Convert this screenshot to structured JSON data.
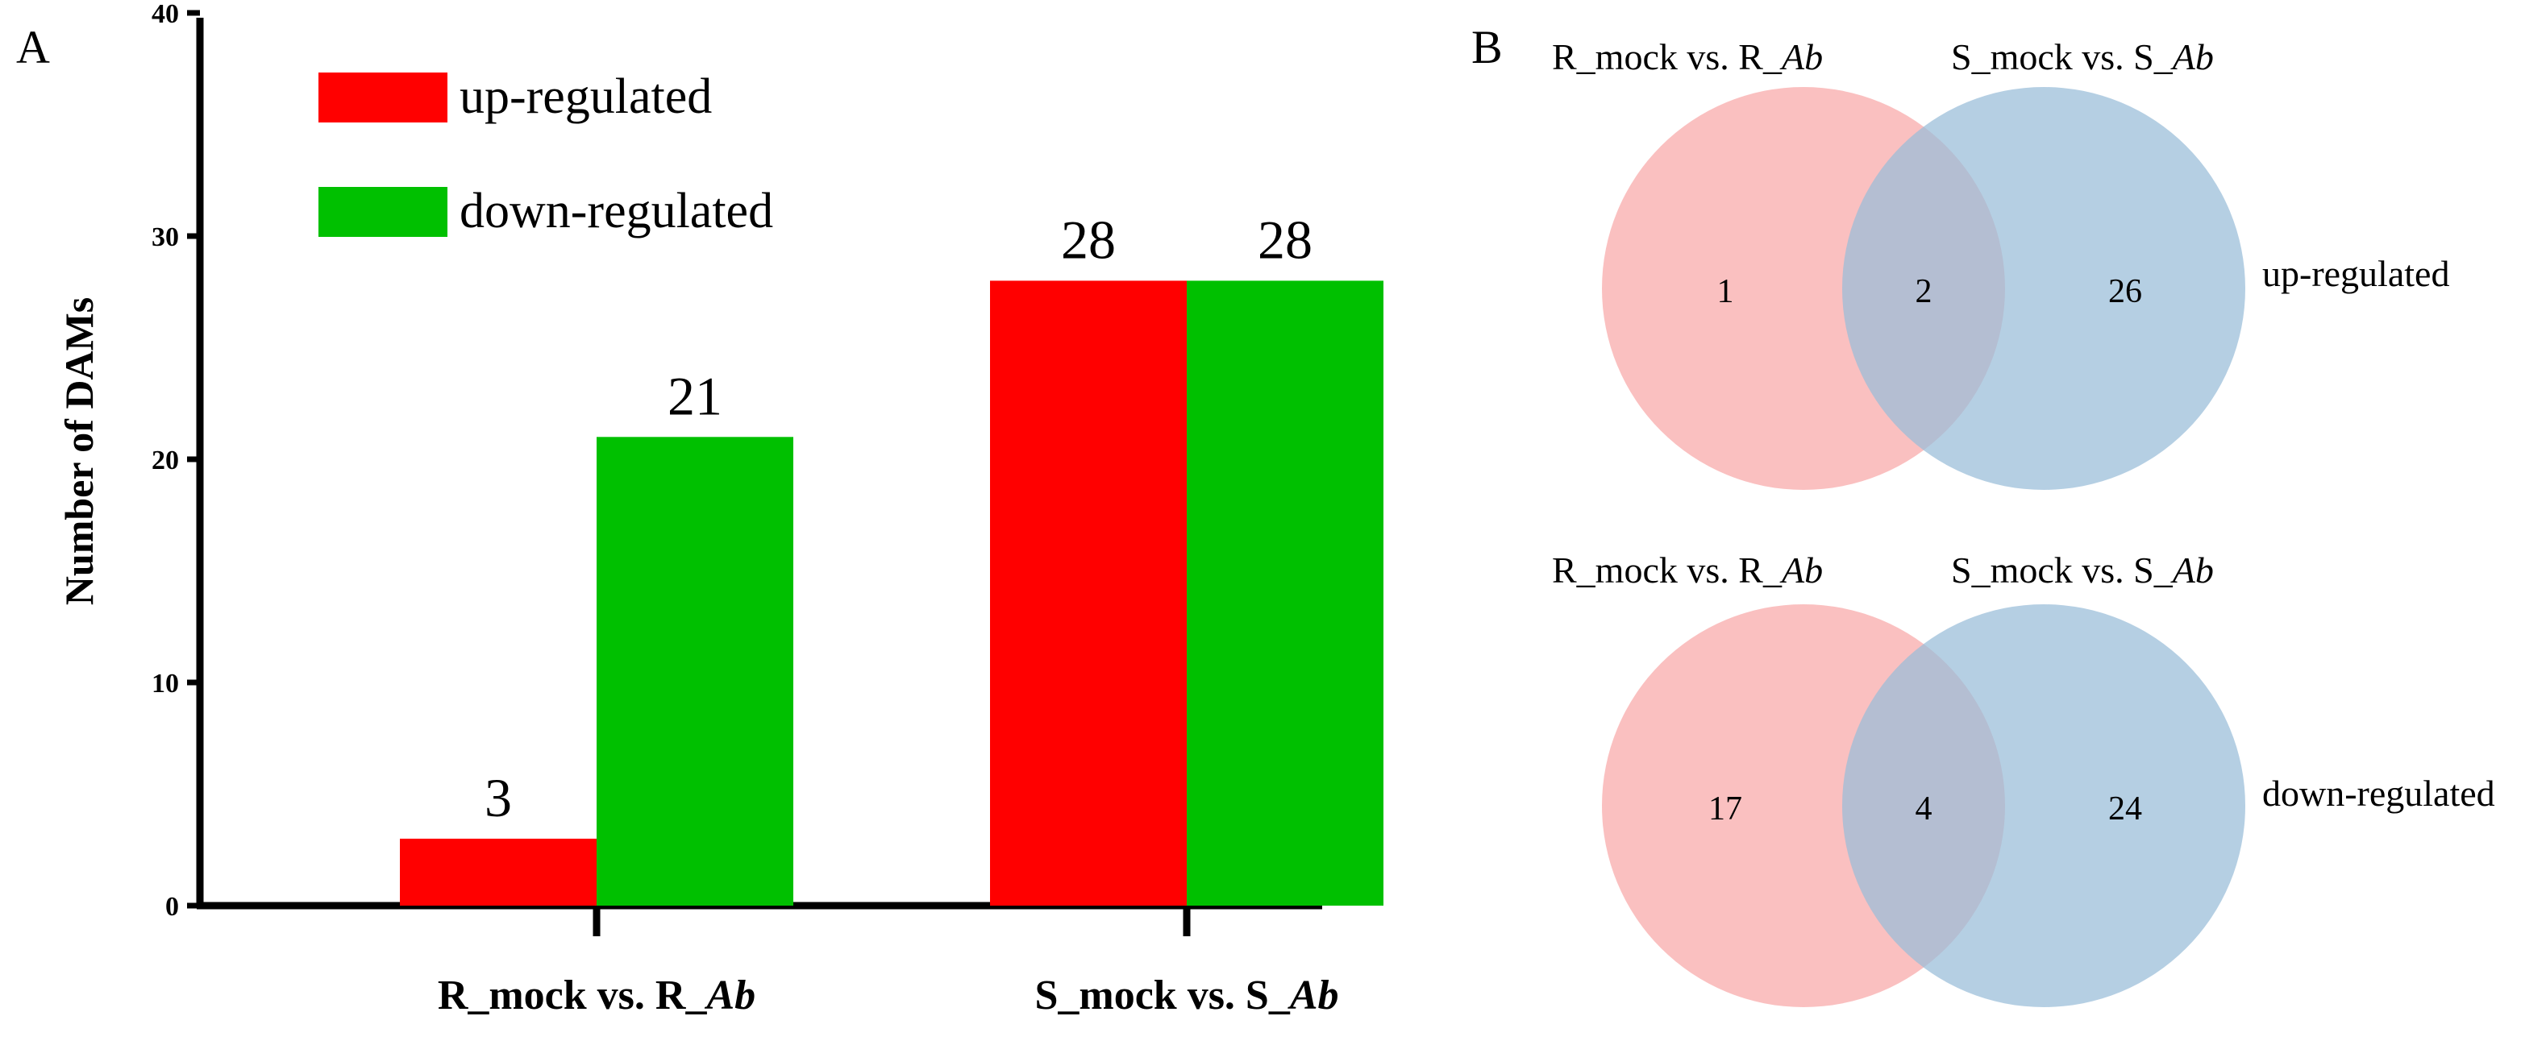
{
  "panels": {
    "a_label": "A",
    "b_label": "B"
  },
  "chart_data": [
    {
      "type": "bar",
      "ylabel": "Number of DAMs",
      "xlabel": "",
      "ylim": [
        0,
        40
      ],
      "yticks": [
        0,
        10,
        20,
        30,
        40
      ],
      "categories": [
        {
          "prefix": "R_mock vs. R_",
          "italic": "Ab"
        },
        {
          "prefix": "S_mock vs. S_",
          "italic": "Ab"
        }
      ],
      "series": [
        {
          "name": "up-regulated",
          "color": "#ff0000",
          "values": [
            3,
            28
          ]
        },
        {
          "name": "down-regulated",
          "color": "#00c000",
          "values": [
            21,
            28
          ]
        }
      ],
      "legend_position": "top-left"
    },
    {
      "type": "venn",
      "title": "up-regulated",
      "set_labels": [
        {
          "prefix": "R_mock vs. R_",
          "italic": "Ab",
          "color": "#f8a8a8"
        },
        {
          "prefix": "S_mock vs. S_",
          "italic": "Ab",
          "color": "#a8c8e0"
        }
      ],
      "only_left": 1,
      "overlap": 2,
      "only_right": 26
    },
    {
      "type": "venn",
      "title": "down-regulated",
      "set_labels": [
        {
          "prefix": "R_mock vs. R_",
          "italic": "Ab",
          "color": "#f8a8a8"
        },
        {
          "prefix": "S_mock vs. S_",
          "italic": "Ab",
          "color": "#a8c8e0"
        }
      ],
      "only_left": 17,
      "overlap": 4,
      "only_right": 24
    }
  ]
}
